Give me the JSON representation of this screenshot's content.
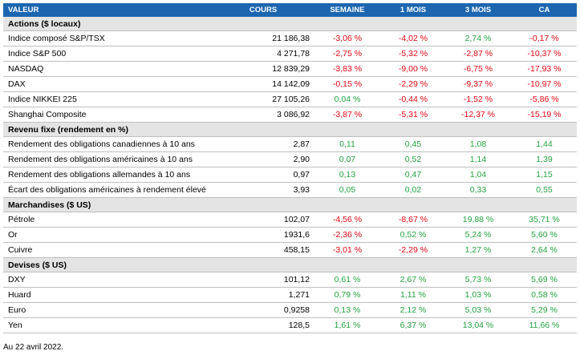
{
  "header": {
    "valeur": "VALEUR",
    "cours": "COURS",
    "semaine": "SEMAINE",
    "mois1": "1 MOIS",
    "mois3": "3 MOIS",
    "ca": "CA"
  },
  "colors": {
    "header_bg": "#1c66b0",
    "section_bg": "#e4e4e4",
    "negative": "#e30613",
    "positive": "#23a341"
  },
  "sections": [
    {
      "title": "Actions ($ locaux)",
      "rows": [
        {
          "name": "Indice composé S&P/TSX",
          "cours": "21 186,38",
          "semaine": "-3,06 %",
          "mois1": "-4,02 %",
          "mois3": "2,74 %",
          "ca": "-0,17 %"
        },
        {
          "name": "Indice S&P 500",
          "cours": "4 271,78",
          "semaine": "-2,75 %",
          "mois1": "-5,32 %",
          "mois3": "-2,87 %",
          "ca": "-10,37 %"
        },
        {
          "name": "NASDAQ",
          "cours": "12 839,29",
          "semaine": "-3,83 %",
          "mois1": "-9,00 %",
          "mois3": "-6,75 %",
          "ca": "-17,93 %"
        },
        {
          "name": "DAX",
          "cours": "14 142,09",
          "semaine": "-0,15 %",
          "mois1": "-2,29 %",
          "mois3": "-9,37 %",
          "ca": "-10,97 %"
        },
        {
          "name": "Indice NIKKEI 225",
          "cours": "27 105,26",
          "semaine": "0,04 %",
          "mois1": "-0,44 %",
          "mois3": "-1,52 %",
          "ca": "-5,86 %"
        },
        {
          "name": "Shanghai Composite",
          "cours": "3 086,92",
          "semaine": "-3,87 %",
          "mois1": "-5,31 %",
          "mois3": "-12,37 %",
          "ca": "-15,19 %"
        }
      ]
    },
    {
      "title": "Revenu fixe (rendement en %)",
      "rows": [
        {
          "name": "Rendement des obligations canadiennes à 10 ans",
          "cours": "2,87",
          "semaine": "0,11",
          "mois1": "0,45",
          "mois3": "1,08",
          "ca": "1,44"
        },
        {
          "name": "Rendement des obligations américaines à 10 ans",
          "cours": "2,90",
          "semaine": "0,07",
          "mois1": "0,52",
          "mois3": "1,14",
          "ca": "1,39"
        },
        {
          "name": "Rendement des obligations allemandes à 10 ans",
          "cours": "0,97",
          "semaine": "0,13",
          "mois1": "0,47",
          "mois3": "1,04",
          "ca": "1,15"
        },
        {
          "name": "Écart des obligations américaines à rendement élevé",
          "cours": "3,93",
          "semaine": "0,05",
          "mois1": "0,02",
          "mois3": "0,33",
          "ca": "0,55"
        }
      ]
    },
    {
      "title": "Marchandises ($ US)",
      "rows": [
        {
          "name": "Pétrole",
          "cours": "102,07",
          "semaine": "-4,56 %",
          "mois1": "-8,67 %",
          "mois3": "19,88 %",
          "ca": "35,71 %"
        },
        {
          "name": "Or",
          "cours": "1931,6",
          "semaine": "-2,36 %",
          "mois1": "0,52 %",
          "mois3": "5,24 %",
          "ca": "5,60 %"
        },
        {
          "name": "Cuivre",
          "cours": "458,15",
          "semaine": "-3,01 %",
          "mois1": "-2,29 %",
          "mois3": "1,27 %",
          "ca": "2,64 %"
        }
      ]
    },
    {
      "title": "Devises ($ US)",
      "rows": [
        {
          "name": "DXY",
          "cours": "101,12",
          "semaine": "0,61 %",
          "mois1": "2,67 %",
          "mois3": "5,73 %",
          "ca": "5,69 %"
        },
        {
          "name": "Huard",
          "cours": "1,271",
          "semaine": "0,79 %",
          "mois1": "1,11 %",
          "mois3": "1,03 %",
          "ca": "0,58 %"
        },
        {
          "name": "Euro",
          "cours": "0,9258",
          "semaine": "0,13 %",
          "mois1": "2,12 %",
          "mois3": "5,03 %",
          "ca": "5,29 %"
        },
        {
          "name": "Yen",
          "cours": "128,5",
          "semaine": "1,61 %",
          "mois1": "6,37 %",
          "mois3": "13,04 %",
          "ca": "11,66 %"
        }
      ]
    }
  ],
  "footnote": "Au 22 avril 2022."
}
